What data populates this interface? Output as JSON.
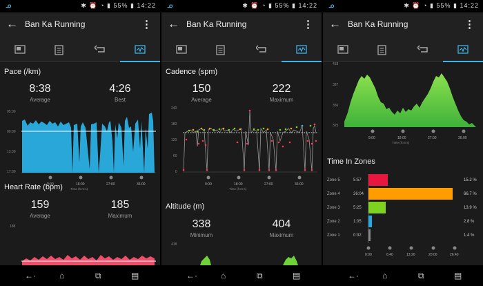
{
  "status": {
    "time": "14:22",
    "battery": "55%"
  },
  "header": {
    "title": "Ban Ka Running"
  },
  "tab_icons": [
    "summary-icon",
    "notes-icon",
    "laps-icon",
    "charts-icon"
  ],
  "pace": {
    "label": "Pace (/km)",
    "average": "8:38",
    "average_label": "Average",
    "best": "4:26",
    "best_label": "Best",
    "y_ticks": [
      "05:00",
      "09:00",
      "13:00",
      "17:00"
    ],
    "x_ticks": [
      "9:00",
      "18:00",
      "27:00",
      "36:00"
    ],
    "x_label": "Time (h:m:s)"
  },
  "heart_rate": {
    "label": "Heart Rate (bpm)",
    "average": "159",
    "average_label": "Average",
    "maximum": "185",
    "maximum_label": "Maximum",
    "y_tick": "188"
  },
  "cadence": {
    "label": "Cadence (spm)",
    "average": "150",
    "average_label": "Average",
    "maximum": "222",
    "maximum_label": "Maximum",
    "y_ticks": [
      "240",
      "180",
      "120",
      "60",
      "0"
    ],
    "x_ticks": [
      "9:00",
      "18:00",
      "27:00",
      "36:00"
    ],
    "x_label": "Time (h:m:s)"
  },
  "altitude": {
    "label": "Altitude (m)",
    "minimum": "338",
    "minimum_label": "Minimum",
    "maximum": "404",
    "maximum_label": "Maximum",
    "y_tick": "418"
  },
  "altitude_chart": {
    "y_ticks": [
      "418",
      "387",
      "356",
      "325"
    ],
    "x_ticks": [
      "9:00",
      "18:00",
      "27:00",
      "36:00"
    ],
    "x_label": "Time (h:m:s)"
  },
  "zones": {
    "title": "Time In Zones",
    "x_ticks": [
      "0:00",
      "6:40",
      "13:20",
      "20:00",
      "26:40"
    ],
    "colors": [
      "#e8173f",
      "#ff9d00",
      "#7ed321",
      "#2aa9e0",
      "#888888"
    ]
  },
  "chart_data": [
    {
      "type": "bar",
      "title": "Time In Zones",
      "categories": [
        "Zone 5",
        "Zone 4",
        "Zone 3",
        "Zone 2",
        "Zone 1"
      ],
      "values_label": [
        "5:57",
        "26:04",
        "5:25",
        "1:05",
        "0:32"
      ],
      "values": [
        5.95,
        26.07,
        5.42,
        1.08,
        0.53
      ],
      "percent": [
        "15.2 %",
        "66.7 %",
        "13.9 %",
        "2.8 %",
        "1.4 %"
      ],
      "xlim": [
        0,
        26.67
      ]
    }
  ]
}
